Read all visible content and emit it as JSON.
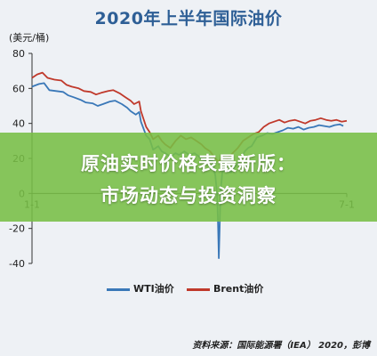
{
  "chart_data": {
    "type": "line",
    "title": "2020年上半年国际油价",
    "unit_label": "(美元/桶)",
    "x_tick_labels": [
      "1-1",
      "7-1"
    ],
    "x_range": [
      0,
      182
    ],
    "ylim": [
      -40,
      80
    ],
    "y_ticks": [
      -40,
      -20,
      0,
      20,
      40,
      60,
      80
    ],
    "grid": false,
    "legend_position": "bottom-center",
    "series": [
      {
        "name": "WTI油价",
        "color": "#3a78b8",
        "points": [
          [
            0,
            61
          ],
          [
            4,
            62.5
          ],
          [
            7,
            63
          ],
          [
            10,
            59
          ],
          [
            14,
            58.5
          ],
          [
            18,
            58
          ],
          [
            21,
            56
          ],
          [
            24,
            55
          ],
          [
            28,
            53.5
          ],
          [
            31,
            52
          ],
          [
            35,
            51.5
          ],
          [
            38,
            50
          ],
          [
            41,
            51
          ],
          [
            45,
            52.5
          ],
          [
            48,
            53
          ],
          [
            52,
            51
          ],
          [
            55,
            49
          ],
          [
            57,
            47
          ],
          [
            60,
            45
          ],
          [
            62,
            46.5
          ],
          [
            63,
            41
          ],
          [
            66,
            33
          ],
          [
            68,
            31
          ],
          [
            70,
            25
          ],
          [
            73,
            27
          ],
          [
            75,
            24
          ],
          [
            77,
            23
          ],
          [
            80,
            21
          ],
          [
            83,
            23
          ],
          [
            85,
            22
          ],
          [
            88,
            24
          ],
          [
            91,
            22
          ],
          [
            94,
            23
          ],
          [
            98,
            20
          ],
          [
            101,
            18
          ],
          [
            104,
            19
          ],
          [
            105,
            15
          ],
          [
            106,
            10
          ],
          [
            107,
            0
          ],
          [
            107.5,
            -15
          ],
          [
            108,
            -37
          ],
          [
            108.5,
            -20
          ],
          [
            109,
            0
          ],
          [
            110,
            12
          ],
          [
            112,
            14
          ],
          [
            115,
            12
          ],
          [
            117,
            15
          ],
          [
            120,
            18
          ],
          [
            123,
            24
          ],
          [
            125,
            26
          ],
          [
            127,
            27
          ],
          [
            130,
            32
          ],
          [
            133,
            33
          ],
          [
            136,
            34.5
          ],
          [
            139,
            34
          ],
          [
            142,
            35
          ],
          [
            145,
            36
          ],
          [
            148,
            37.5
          ],
          [
            151,
            37
          ],
          [
            154,
            38
          ],
          [
            157,
            36.5
          ],
          [
            160,
            37.5
          ],
          [
            163,
            38
          ],
          [
            166,
            39
          ],
          [
            169,
            38.5
          ],
          [
            172,
            38
          ],
          [
            175,
            39
          ],
          [
            178,
            39.5
          ],
          [
            180,
            38.5
          ]
        ]
      },
      {
        "name": "Brent油价",
        "color": "#c0392b",
        "points": [
          [
            0,
            66
          ],
          [
            3,
            68
          ],
          [
            6,
            69
          ],
          [
            9,
            66
          ],
          [
            13,
            65
          ],
          [
            17,
            64.5
          ],
          [
            20,
            62
          ],
          [
            23,
            61
          ],
          [
            27,
            60
          ],
          [
            30,
            58.5
          ],
          [
            34,
            58
          ],
          [
            37,
            56.5
          ],
          [
            40,
            57.5
          ],
          [
            44,
            58.5
          ],
          [
            47,
            59
          ],
          [
            51,
            57
          ],
          [
            54,
            55
          ],
          [
            57,
            53
          ],
          [
            59,
            51
          ],
          [
            62,
            52.5
          ],
          [
            63,
            47
          ],
          [
            66,
            38
          ],
          [
            68,
            35
          ],
          [
            70,
            31
          ],
          [
            73,
            33
          ],
          [
            75,
            30
          ],
          [
            77,
            28
          ],
          [
            80,
            26
          ],
          [
            83,
            30
          ],
          [
            86,
            33
          ],
          [
            89,
            31
          ],
          [
            92,
            32
          ],
          [
            95,
            30
          ],
          [
            98,
            28
          ],
          [
            100,
            26
          ],
          [
            103,
            24
          ],
          [
            106,
            20
          ],
          [
            108,
            18
          ],
          [
            110,
            21
          ],
          [
            113,
            20
          ],
          [
            116,
            23
          ],
          [
            119,
            26
          ],
          [
            122,
            30
          ],
          [
            125,
            32
          ],
          [
            128,
            34
          ],
          [
            131,
            35
          ],
          [
            134,
            38
          ],
          [
            137,
            40
          ],
          [
            140,
            41
          ],
          [
            143,
            42
          ],
          [
            146,
            40.5
          ],
          [
            149,
            41.5
          ],
          [
            152,
            42
          ],
          [
            155,
            41
          ],
          [
            158,
            40
          ],
          [
            161,
            41.5
          ],
          [
            164,
            42
          ],
          [
            167,
            43
          ],
          [
            170,
            42
          ],
          [
            173,
            41.5
          ],
          [
            176,
            42
          ],
          [
            179,
            41
          ],
          [
            182,
            41.5
          ]
        ]
      }
    ]
  },
  "banner": {
    "line1": "原油实时价格表最新版：",
    "line2": "市场动态与投资洞察"
  },
  "source_text": "资料来源：国际能源署（IEA） 2020，彭博"
}
